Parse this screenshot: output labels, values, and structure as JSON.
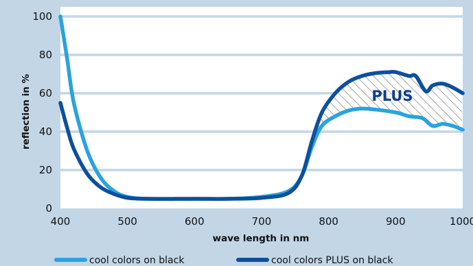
{
  "chart_data": {
    "type": "line",
    "xlabel": "wave length in nm",
    "ylabel": "reflection in %",
    "xlim": [
      400,
      1000
    ],
    "ylim": [
      0,
      100
    ],
    "x_ticks": [
      400,
      500,
      600,
      700,
      800,
      900,
      1000
    ],
    "y_ticks": [
      0,
      20,
      40,
      60,
      80,
      100
    ],
    "grid": "horizontal",
    "legend_position": "bottom",
    "annotation": "PLUS",
    "series": [
      {
        "name": "cool colors on black",
        "color": "#2aa3dc",
        "points": [
          [
            400,
            100
          ],
          [
            410,
            78
          ],
          [
            420,
            55
          ],
          [
            440,
            30
          ],
          [
            460,
            16
          ],
          [
            480,
            9
          ],
          [
            500,
            6
          ],
          [
            530,
            5
          ],
          [
            600,
            5
          ],
          [
            650,
            5
          ],
          [
            700,
            6
          ],
          [
            740,
            9
          ],
          [
            760,
            17
          ],
          [
            775,
            32
          ],
          [
            790,
            43
          ],
          [
            810,
            48
          ],
          [
            830,
            51
          ],
          [
            850,
            52
          ],
          [
            870,
            51.5
          ],
          [
            900,
            50
          ],
          [
            920,
            48
          ],
          [
            940,
            47
          ],
          [
            955,
            43
          ],
          [
            970,
            44
          ],
          [
            985,
            43
          ],
          [
            1000,
            41
          ]
        ]
      },
      {
        "name": "cool colors PLUS on black",
        "color": "#0d4f9e",
        "points": [
          [
            400,
            55
          ],
          [
            410,
            42
          ],
          [
            420,
            31
          ],
          [
            440,
            18
          ],
          [
            460,
            11
          ],
          [
            480,
            7.5
          ],
          [
            500,
            5.5
          ],
          [
            530,
            5
          ],
          [
            600,
            5
          ],
          [
            650,
            5
          ],
          [
            700,
            5.5
          ],
          [
            740,
            8
          ],
          [
            760,
            17
          ],
          [
            775,
            35
          ],
          [
            790,
            50
          ],
          [
            810,
            60
          ],
          [
            830,
            66
          ],
          [
            850,
            69
          ],
          [
            870,
            70.5
          ],
          [
            890,
            71
          ],
          [
            900,
            71
          ],
          [
            920,
            69
          ],
          [
            930,
            69
          ],
          [
            945,
            61
          ],
          [
            955,
            64
          ],
          [
            970,
            65
          ],
          [
            985,
            63
          ],
          [
            1000,
            60
          ]
        ]
      }
    ]
  }
}
